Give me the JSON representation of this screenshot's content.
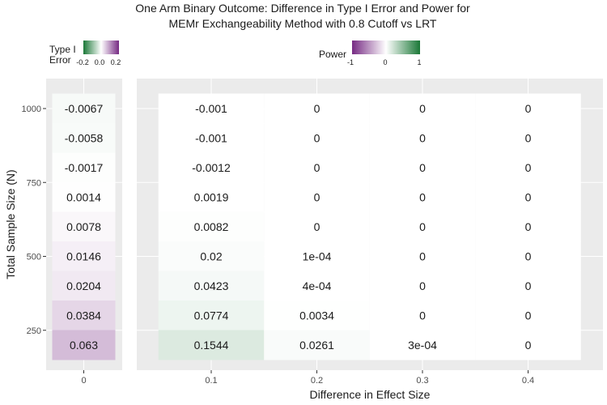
{
  "chart_data": {
    "type": "heatmap",
    "title": [
      "One Arm Binary Outcome: Difference in Type I Error and Power for",
      "MEMr Exchangeability Method with 0.8 Cutoff vs LRT"
    ],
    "xlabel": "Difference in Effect Size",
    "ylabel": "Total Sample Size (N)",
    "y_ticks": [
      1000,
      750,
      500,
      250
    ],
    "y_tick_labels": [
      "1000",
      "750",
      "500",
      "250"
    ],
    "sample_sizes": [
      1000,
      900,
      800,
      700,
      600,
      500,
      400,
      300,
      200
    ],
    "panels": [
      {
        "name": "type1",
        "x_tick_labels": [
          "0"
        ],
        "columns": [
          0
        ],
        "values": [
          [
            -0.0067
          ],
          [
            -0.0058
          ],
          [
            -0.0017
          ],
          [
            0.0014
          ],
          [
            0.0078
          ],
          [
            0.0146
          ],
          [
            0.0204
          ],
          [
            0.0384
          ],
          [
            0.063
          ]
        ],
        "labels": [
          [
            "-0.0067"
          ],
          [
            "-0.0058"
          ],
          [
            "-0.0017"
          ],
          [
            "0.0014"
          ],
          [
            "0.0078"
          ],
          [
            "0.0146"
          ],
          [
            "0.0204"
          ],
          [
            "0.0384"
          ],
          [
            "0.063"
          ]
        ],
        "legend": {
          "title": [
            "Type I",
            "Error"
          ],
          "ticks": [
            "-0.2",
            "0.0",
            "0.2"
          ],
          "range": [
            -0.2,
            0.2
          ],
          "low_color": "#1b7837",
          "mid_color": "#ffffff",
          "high_color": "#762a83"
        }
      },
      {
        "name": "power",
        "x_tick_labels": [
          "0.1",
          "0.2",
          "0.3",
          "0.4"
        ],
        "columns": [
          0.1,
          0.2,
          0.3,
          0.4
        ],
        "values": [
          [
            -0.001,
            0,
            0,
            0
          ],
          [
            -0.001,
            0,
            0,
            0
          ],
          [
            -0.0012,
            0,
            0,
            0
          ],
          [
            0.0019,
            0,
            0,
            0
          ],
          [
            0.0082,
            0,
            0,
            0
          ],
          [
            0.02,
            0.0001,
            0,
            0
          ],
          [
            0.0423,
            0.0004,
            0,
            0
          ],
          [
            0.0774,
            0.0034,
            0,
            0
          ],
          [
            0.1544,
            0.0261,
            0.0003,
            0
          ]
        ],
        "labels": [
          [
            "-0.001",
            "0",
            "0",
            "0"
          ],
          [
            "-0.001",
            "0",
            "0",
            "0"
          ],
          [
            "-0.0012",
            "0",
            "0",
            "0"
          ],
          [
            "0.0019",
            "0",
            "0",
            "0"
          ],
          [
            "0.0082",
            "0",
            "0",
            "0"
          ],
          [
            "0.02",
            "1e-04",
            "0",
            "0"
          ],
          [
            "0.0423",
            "4e-04",
            "0",
            "0"
          ],
          [
            "0.0774",
            "0.0034",
            "0",
            "0"
          ],
          [
            "0.1544",
            "0.0261",
            "3e-04",
            "0"
          ]
        ],
        "legend": {
          "title": [
            "Power"
          ],
          "ticks": [
            "-1",
            "0",
            "1"
          ],
          "range": [
            -1,
            1
          ],
          "low_color": "#762a83",
          "mid_color": "#ffffff",
          "high_color": "#1b7837"
        }
      }
    ]
  }
}
